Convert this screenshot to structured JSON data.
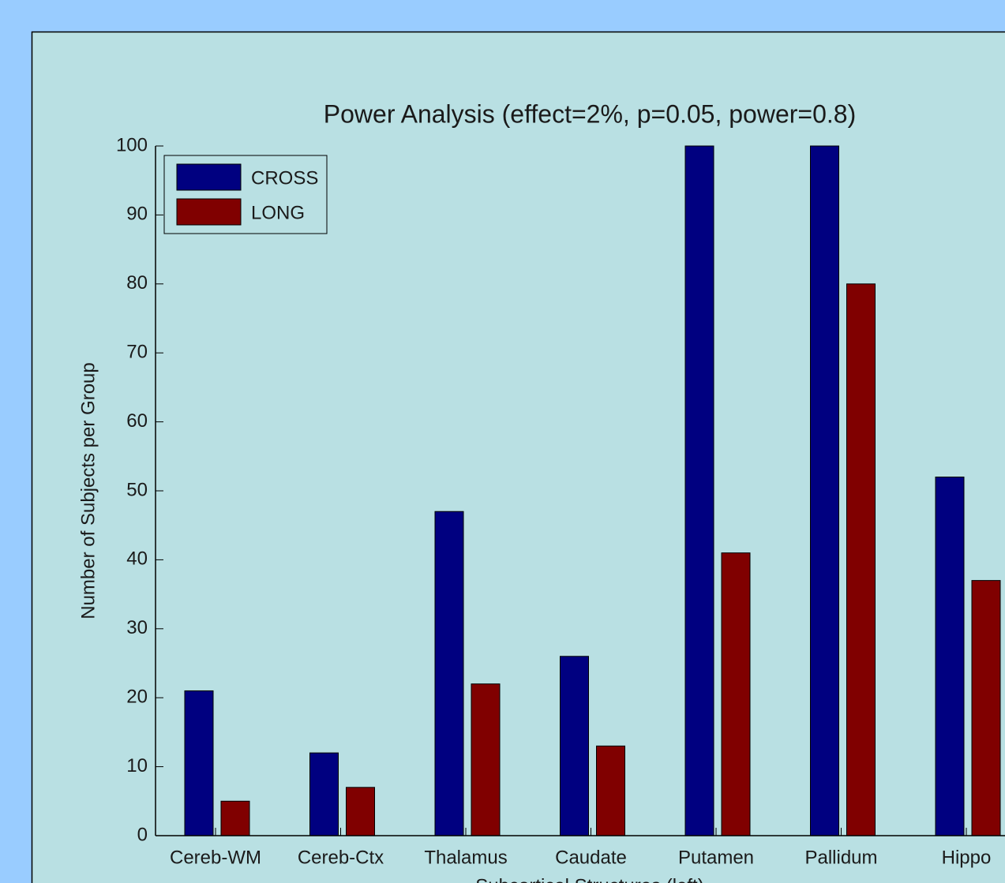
{
  "chart_data": {
    "type": "bar",
    "title": "Power Analysis (effect=2%, p=0.05, power=0.8)",
    "x_label": "Subcortical Structures (left)",
    "y_label": "Number of Subjects per Group",
    "categories": [
      "Cereb-WM",
      "Cereb-Ctx",
      "Thalamus",
      "Caudate",
      "Putamen",
      "Pallidum",
      "Hippo"
    ],
    "series": [
      {
        "name": "CROSS",
        "color": "#000080",
        "values": [
          21,
          12,
          47,
          26,
          100,
          100,
          52
        ]
      },
      {
        "name": "LONG",
        "color": "#800000",
        "values": [
          5,
          7,
          22,
          13,
          41,
          80,
          37
        ]
      }
    ],
    "ylim": [
      0,
      100
    ],
    "yticks": [
      0,
      10,
      20,
      30,
      40,
      50,
      60,
      70,
      80,
      90,
      100
    ],
    "legend": "upper left"
  }
}
